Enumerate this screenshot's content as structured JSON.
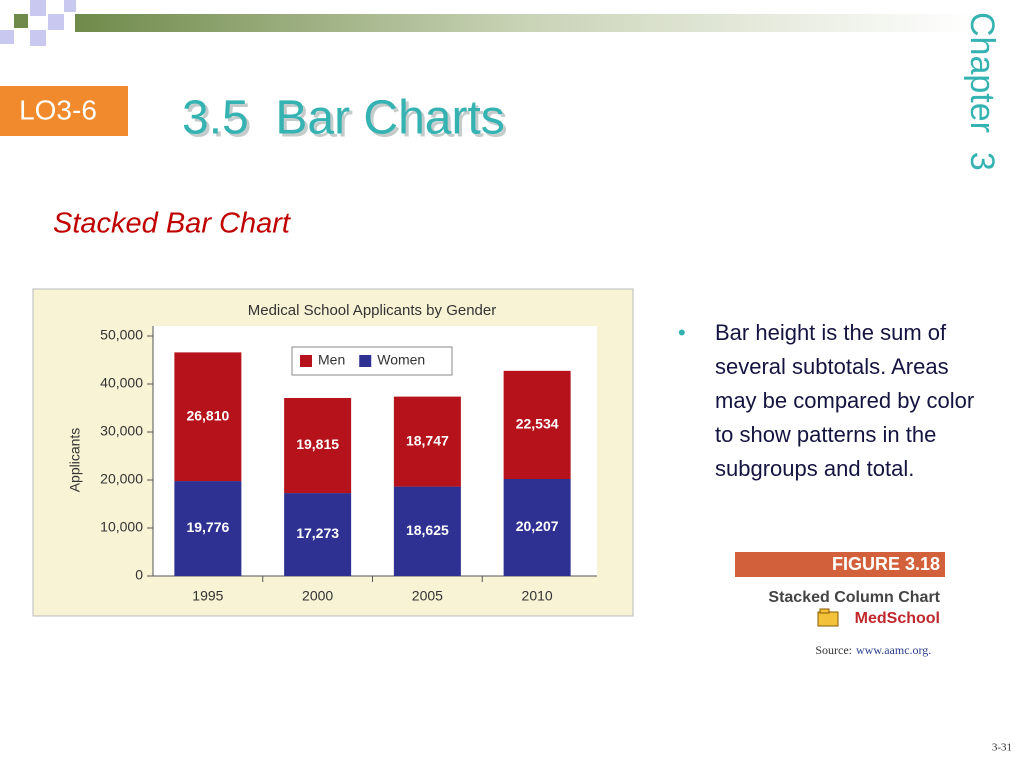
{
  "slide": {
    "lo_badge": "LO3-6",
    "title": "3.5  Bar Charts",
    "chapter": "Chapter  3",
    "subtitle": "Stacked Bar Chart",
    "bullet": "Bar height is the sum of several subtotals. Areas may be compared by color to show patterns in the subgroups and total.",
    "figure": {
      "label": "FIGURE 3.18",
      "caption": "Stacked Column Chart",
      "file": "MedSchool",
      "source_label": "Source:",
      "source_url": "www.aamc.org."
    },
    "page_number": "3-31"
  },
  "chart_data": {
    "type": "stacked_bar",
    "title": "Medical School Applicants by Gender",
    "y_label": "Applicants",
    "categories": [
      "1995",
      "2000",
      "2005",
      "2010"
    ],
    "series": [
      {
        "name": "Men",
        "color": "#b5121b",
        "values": [
          26810,
          19815,
          18747,
          22534
        ],
        "value_labels": [
          "26,810",
          "19,815",
          "18,747",
          "22,534"
        ]
      },
      {
        "name": "Women",
        "color": "#2e3192",
        "values": [
          19776,
          17273,
          18625,
          20207
        ],
        "value_labels": [
          "19,776",
          "17,273",
          "18,625",
          "20,207"
        ]
      }
    ],
    "ylim": [
      0,
      50000
    ],
    "yticks": [
      0,
      {
        "value": 10000,
        "label": "10,000"
      },
      {
        "value": 20000,
        "label": "20,000"
      },
      {
        "value": 30000,
        "label": "30,000"
      },
      {
        "value": 40000,
        "label": "40,000"
      },
      {
        "value": 50000,
        "label": "50,000"
      }
    ],
    "grid": false,
    "legend": "top",
    "background": "#f7f3d4"
  }
}
